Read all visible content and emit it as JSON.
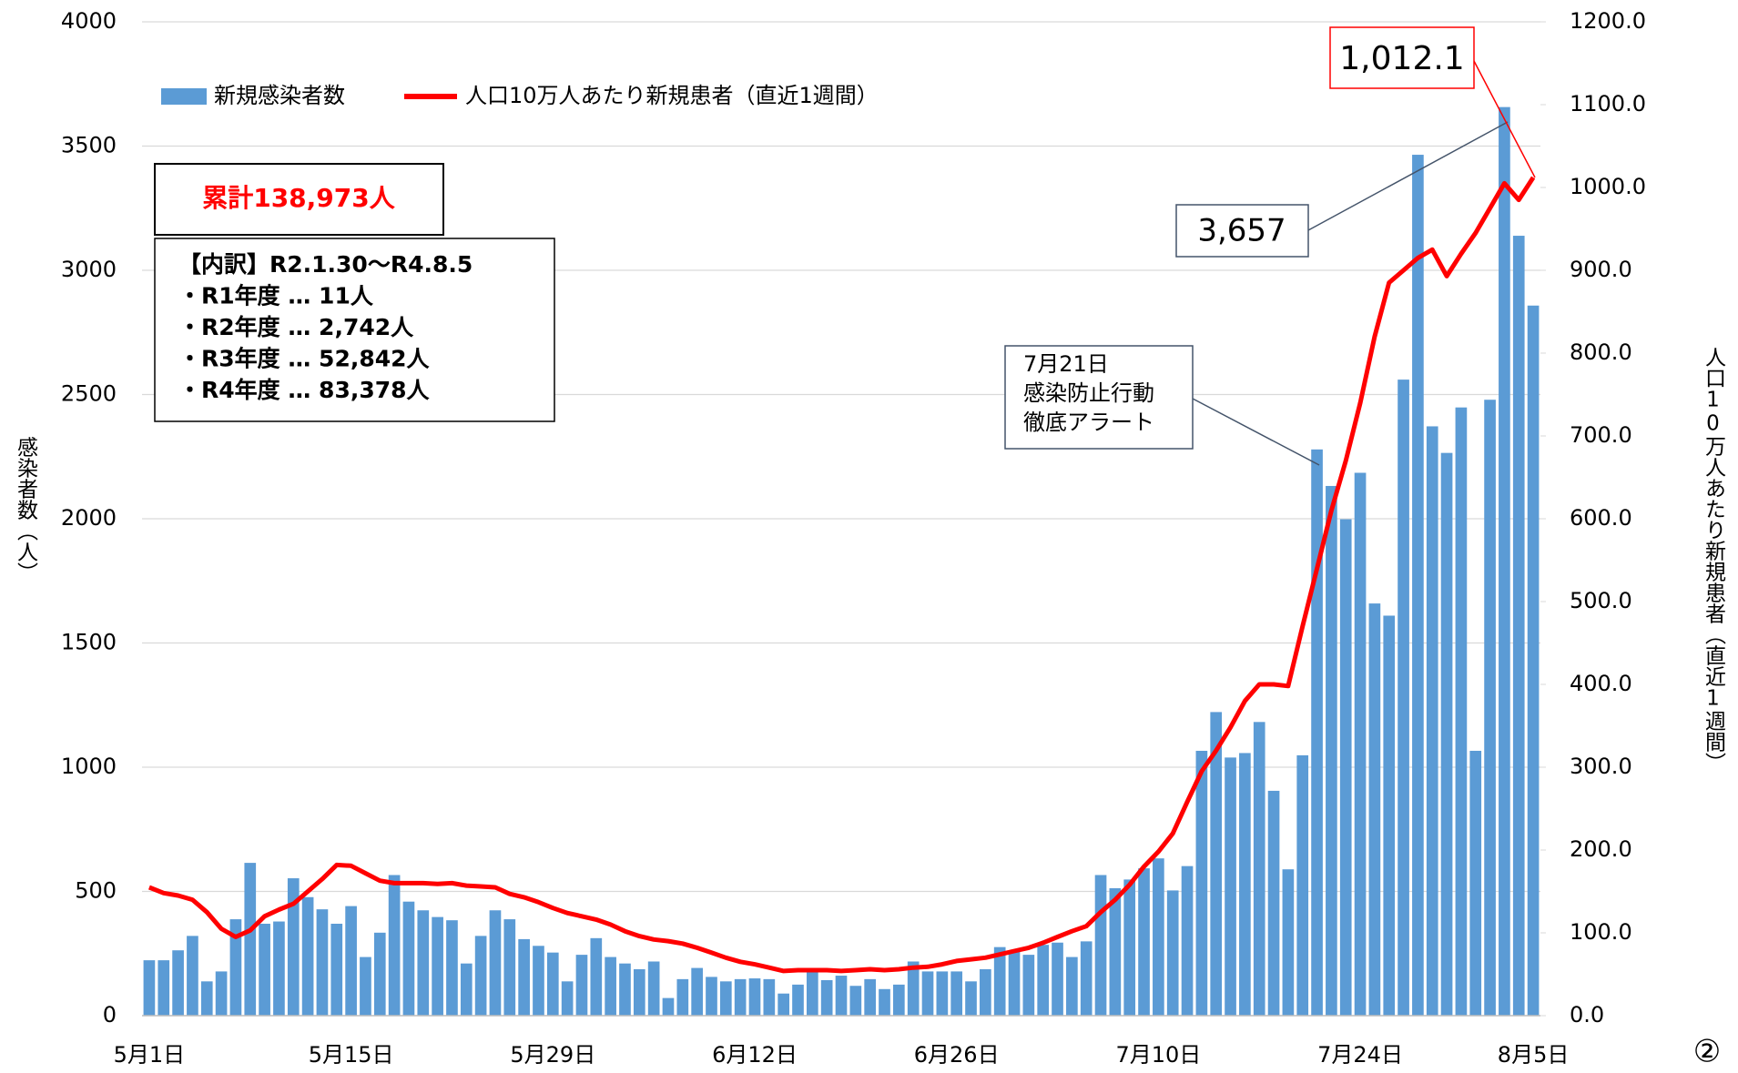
{
  "chart_data": {
    "type": "bar",
    "categories": [
      "5月1日",
      null,
      null,
      null,
      null,
      null,
      null,
      null,
      null,
      null,
      null,
      null,
      null,
      null,
      "5月15日",
      null,
      null,
      null,
      null,
      null,
      null,
      null,
      null,
      null,
      null,
      null,
      null,
      null,
      "5月29日",
      null,
      null,
      null,
      null,
      null,
      null,
      null,
      null,
      null,
      null,
      null,
      null,
      null,
      "6月12日",
      null,
      null,
      null,
      null,
      null,
      null,
      null,
      null,
      null,
      null,
      null,
      null,
      null,
      "6月26日",
      null,
      null,
      null,
      null,
      null,
      null,
      null,
      null,
      null,
      null,
      null,
      null,
      null,
      "7月10日",
      null,
      null,
      null,
      null,
      null,
      null,
      null,
      null,
      null,
      null,
      null,
      null,
      null,
      "7月24日",
      null,
      null,
      null,
      null,
      null,
      null,
      null,
      null,
      null,
      null,
      null,
      "8月5日"
    ],
    "series": [
      {
        "name": "新規感染者数",
        "type": "bar",
        "color": "#5b9bd5",
        "values": [
          223,
          223,
          263,
          321,
          138,
          178,
          388,
          615,
          370,
          379,
          553,
          477,
          428,
          370,
          441,
          236,
          334,
          566,
          459,
          424,
          397,
          384,
          210,
          321,
          424,
          388,
          308,
          281,
          254,
          138,
          245,
          312,
          236,
          210,
          187,
          218,
          71,
          147,
          192,
          156,
          138,
          147,
          150,
          147,
          89,
          125,
          183,
          143,
          161,
          120,
          147,
          107,
          125,
          218,
          178,
          178,
          178,
          138,
          187,
          276,
          263,
          245,
          285,
          294,
          236,
          299,
          566,
          513,
          548,
          593,
          633,
          504,
          602,
          1066,
          1222,
          1039,
          1057,
          1182,
          905,
          589,
          1048,
          2279,
          2132,
          1998,
          2185,
          1659,
          1610,
          2560,
          3465,
          2372,
          2265,
          2448,
          1066,
          2479,
          3657,
          3139,
          2858
        ]
      },
      {
        "name": "人口10万人あたり新規患者（直近1週間）",
        "type": "line",
        "axis": "y2",
        "color": "#ff0000",
        "values": [
          155,
          148,
          145,
          140,
          125,
          105,
          95,
          103,
          120,
          128,
          135,
          150,
          165,
          182,
          181,
          172,
          163,
          160,
          160,
          160,
          159,
          160,
          157,
          156,
          155,
          147,
          143,
          137,
          130,
          124,
          120,
          116,
          110,
          102,
          96,
          92,
          90,
          87,
          82,
          76,
          70,
          65,
          62,
          58,
          54,
          55,
          55,
          55,
          54,
          55,
          56,
          55,
          56,
          58,
          59,
          62,
          66,
          68,
          70,
          74,
          78,
          82,
          88,
          95,
          102,
          108,
          125,
          140,
          158,
          180,
          198,
          220,
          258,
          295,
          320,
          348,
          380,
          400,
          400,
          398,
          470,
          540,
          610,
          670,
          740,
          820,
          885,
          900,
          915,
          925,
          893,
          920,
          945,
          975,
          1005,
          985,
          1012.1
        ]
      }
    ],
    "ylim": [
      0,
      4000
    ],
    "yticks": [
      0,
      500,
      1000,
      1500,
      2000,
      2500,
      3000,
      3500,
      4000
    ],
    "y2lim": [
      0,
      1200
    ],
    "y2ticks": [
      {
        "value": 0,
        "label": "0.0"
      },
      {
        "value": 100,
        "label": "100.0"
      },
      {
        "value": 200,
        "label": "200.0"
      },
      {
        "value": 300,
        "label": "300.0"
      },
      {
        "value": 400,
        "label": "400.0"
      },
      {
        "value": 500,
        "label": "500.0"
      },
      {
        "value": 600,
        "label": "600.0"
      },
      {
        "value": 700,
        "label": "700.0"
      },
      {
        "value": 800,
        "label": "800.0"
      },
      {
        "value": 900,
        "label": "900.0"
      },
      {
        "value": 1000,
        "label": "1000.0"
      },
      {
        "value": 1100,
        "label": "1100.0"
      },
      {
        "value": 1200,
        "label": "1200.0"
      }
    ],
    "y_label": "感染者数（人）",
    "y2_label": "人口10万人あたり新規患者（直近1週間）",
    "grid": true,
    "total": "累計138,973人",
    "breakdown": [
      "【内訳】R2.1.30～R4.8.5",
      "・R1年度 … 11人",
      "・R2年度 … 2,742人",
      "・R3年度 … 52,842人",
      "・R4年度 … 83,378人"
    ],
    "annotations": [
      {
        "text": "3,657"
      },
      {
        "text": "1,012.1"
      },
      {
        "text": [
          "7月21日",
          "感染防止行動",
          "徹底アラート"
        ]
      }
    ],
    "page_number": "②"
  }
}
